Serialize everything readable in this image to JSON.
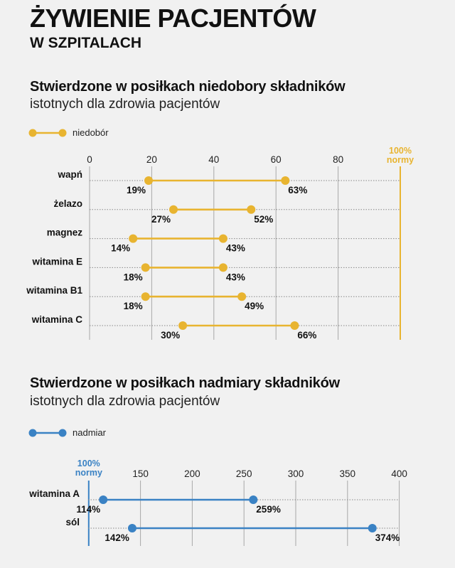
{
  "header": {
    "title": "ŻYWIENIE PACJENTÓW",
    "subtitle": "W SZPITALACH"
  },
  "chart_data": [
    {
      "type": "dumbbell",
      "title": "Stwierdzone w posiłkach niedobory składników",
      "subtitle": "istotnych dla zdrowia pacjentów",
      "legend": "niedobór",
      "legend_position": "top-left",
      "color": "#e8b430",
      "xticks": [
        0,
        20,
        40,
        60,
        80
      ],
      "xlim": [
        0,
        100
      ],
      "reference": {
        "value": 100,
        "label_line1": "100%",
        "label_line2": "normy"
      },
      "categories": [
        "wapń",
        "żelazo",
        "magnez",
        "witamina E",
        "witamina B1",
        "witamina C"
      ],
      "series": [
        {
          "min": 19,
          "max": 63,
          "min_label": "19%",
          "max_label": "63%"
        },
        {
          "min": 27,
          "max": 52,
          "min_label": "27%",
          "max_label": "52%"
        },
        {
          "min": 14,
          "max": 43,
          "min_label": "14%",
          "max_label": "43%"
        },
        {
          "min": 18,
          "max": 43,
          "min_label": "18%",
          "max_label": "43%"
        },
        {
          "min": 18,
          "max": 49,
          "min_label": "18%",
          "max_label": "49%"
        },
        {
          "min": 30,
          "max": 66,
          "min_label": "30%",
          "max_label": "66%"
        }
      ],
      "grid": true
    },
    {
      "type": "dumbbell",
      "title": "Stwierdzone w posiłkach nadmiary składników",
      "subtitle": "istotnych dla zdrowia pacjentów",
      "legend": "nadmiar",
      "legend_position": "top-left",
      "color": "#3a82c4",
      "xticks": [
        150,
        200,
        250,
        300,
        350,
        400
      ],
      "xlim": [
        100,
        400
      ],
      "reference": {
        "value": 100,
        "label_line1": "100%",
        "label_line2": "normy"
      },
      "categories": [
        "witamina A",
        "sól"
      ],
      "series": [
        {
          "min": 114,
          "max": 259,
          "min_label": "114%",
          "max_label": "259%"
        },
        {
          "min": 142,
          "max": 374,
          "min_label": "142%",
          "max_label": "374%"
        }
      ],
      "grid": true
    }
  ]
}
